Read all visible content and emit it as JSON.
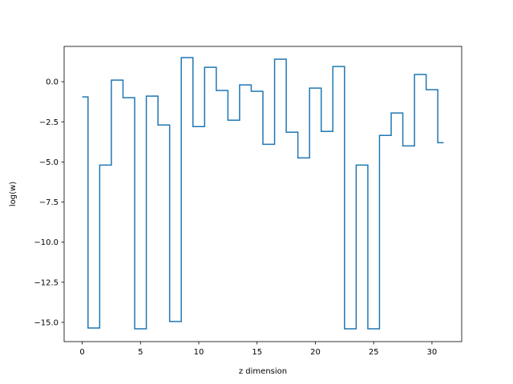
{
  "chart_data": {
    "type": "line",
    "drawstyle": "steps-mid",
    "title": "",
    "xlabel": "z dimension",
    "ylabel": "log(w)",
    "xlim": [
      -1.55,
      32.55
    ],
    "ylim": [
      -16.2,
      2.2
    ],
    "xticks": [
      0,
      5,
      10,
      15,
      20,
      25,
      30
    ],
    "yticks": [
      -15.0,
      -12.5,
      -10.0,
      -7.5,
      -5.0,
      -2.5,
      0.0
    ],
    "xtick_labels": [
      "0",
      "5",
      "10",
      "15",
      "20",
      "25",
      "30"
    ],
    "ytick_labels": [
      "−15.0",
      "−12.5",
      "−10.0",
      "−7.5",
      "−5.0",
      "−2.5",
      "0.0"
    ],
    "grid": false,
    "line_color": "#1f77b4",
    "x": [
      0,
      1,
      2,
      3,
      4,
      5,
      6,
      7,
      8,
      9,
      10,
      11,
      12,
      13,
      14,
      15,
      16,
      17,
      18,
      19,
      20,
      21,
      22,
      23,
      24,
      25,
      26,
      27,
      28,
      29,
      30,
      31
    ],
    "series": [
      {
        "values": [
          -0.95,
          -15.35,
          -5.2,
          0.1,
          -1.0,
          -15.4,
          -0.9,
          -2.7,
          -14.95,
          1.5,
          -2.8,
          0.9,
          -0.55,
          -2.4,
          -0.2,
          -0.6,
          -3.9,
          1.4,
          -3.15,
          -4.75,
          -0.4,
          -3.1,
          0.95,
          -15.4,
          -5.2,
          -15.4,
          -3.35,
          -1.95,
          -4.0,
          0.45,
          -0.5,
          -3.8
        ]
      }
    ]
  }
}
